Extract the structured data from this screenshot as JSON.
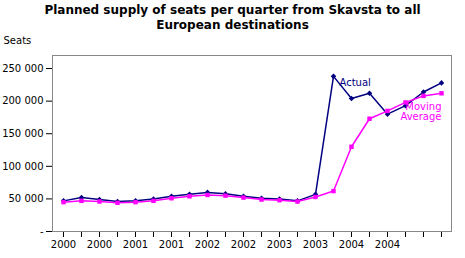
{
  "chart_data": {
    "type": "line",
    "title": "Planned supply of seats per quarter from Skavsta to all\nEuropean destinations",
    "ylabel": "Seats",
    "categories": [
      "2000",
      null,
      "2000",
      null,
      "2001",
      null,
      "2001",
      null,
      "2002",
      null,
      "2002",
      null,
      "2003",
      null,
      "2003",
      null,
      "2004",
      null,
      "2004",
      null,
      null,
      null
    ],
    "series": [
      {
        "name": "Actual",
        "color": "#000080",
        "marker": "diamond",
        "values": [
          47000,
          52000,
          49000,
          46000,
          47000,
          50000,
          54000,
          57000,
          60000,
          58000,
          54000,
          51000,
          50000,
          47000,
          57000,
          238000,
          204000,
          212000,
          180000,
          193000,
          214000,
          228000
        ]
      },
      {
        "name": "Moving\nAverage",
        "color": "#FF00FF",
        "marker": "square",
        "values": [
          45000,
          47000,
          46000,
          44000,
          45000,
          47000,
          51000,
          54000,
          56000,
          55000,
          52000,
          49000,
          48000,
          46000,
          53000,
          62000,
          130000,
          173000,
          185000,
          198000,
          208000,
          212000
        ]
      }
    ],
    "ylim": [
      0,
      270000
    ],
    "yticks": [
      {
        "value": 0,
        "label": "-"
      },
      {
        "value": 50000,
        "label": "50 000"
      },
      {
        "value": 100000,
        "label": "100 000"
      },
      {
        "value": 150000,
        "label": "150 000"
      },
      {
        "value": 200000,
        "label": "200 000"
      },
      {
        "value": 250000,
        "label": "250 000"
      }
    ],
    "grid": false
  }
}
